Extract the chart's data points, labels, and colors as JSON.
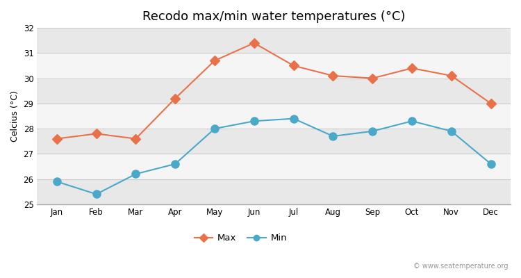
{
  "title": "Recodo max/min water temperatures (°C)",
  "ylabel": "Celcius (°C)",
  "months": [
    "Jan",
    "Feb",
    "Mar",
    "Apr",
    "May",
    "Jun",
    "Jul",
    "Aug",
    "Sep",
    "Oct",
    "Nov",
    "Dec"
  ],
  "max_temps": [
    27.6,
    27.8,
    27.6,
    29.2,
    30.7,
    31.4,
    30.5,
    30.1,
    30.0,
    30.4,
    30.1,
    29.0
  ],
  "min_temps": [
    25.9,
    25.4,
    26.2,
    26.6,
    28.0,
    28.3,
    28.4,
    27.7,
    27.9,
    28.3,
    27.9,
    26.6
  ],
  "max_color": "#e8714a",
  "min_color": "#4aa8c8",
  "ylim": [
    25,
    32
  ],
  "yticks": [
    25,
    26,
    27,
    28,
    29,
    30,
    31,
    32
  ],
  "background_color": "#ffffff",
  "stripe_light": "#f5f5f5",
  "stripe_dark": "#e8e8e8",
  "watermark": "© www.seatemperature.org",
  "title_fontsize": 13,
  "label_fontsize": 9,
  "tick_fontsize": 8.5,
  "legend_labels": [
    "Max",
    "Min"
  ],
  "max_marker": "D",
  "min_marker": "o",
  "linewidth": 1.5,
  "max_markersize": 7,
  "min_markersize": 8
}
